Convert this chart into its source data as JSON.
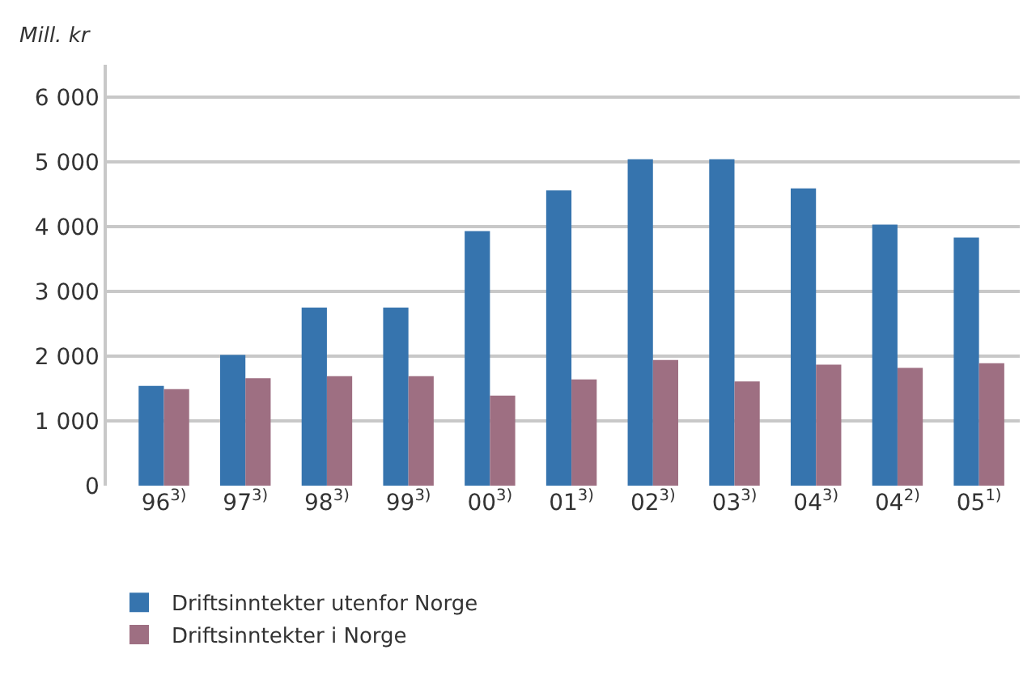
{
  "chart_data": {
    "type": "bar",
    "ylabel": "Mill. kr",
    "categories": [
      "96$^{3)}$",
      "97$^{3)}$",
      "98$^{3)}$",
      "99$^{3)}$",
      "00$^{3)}$",
      "01$^{3)}$",
      "02$^{3)}$",
      "03$^{3)}$",
      "04$^{3)}$",
      "04$^{2)}$",
      "05$^{1)}$"
    ],
    "series": [
      {
        "name": "Driftsinntekter utenfor Norge",
        "color": "#3674ae",
        "values": [
          1540,
          2020,
          2750,
          2750,
          3930,
          4560,
          5040,
          5040,
          4590,
          4030,
          3830
        ]
      },
      {
        "name": "Driftsinntekter i Norge",
        "color": "#9e6f82",
        "values": [
          1490,
          1660,
          1690,
          1690,
          1390,
          1640,
          1940,
          1610,
          1870,
          1820,
          1890
        ]
      }
    ],
    "ylim": [
      0,
      6500
    ],
    "yticks": [
      0,
      {
        "value": 1000,
        "label": "1 000"
      },
      {
        "value": 2000,
        "label": "2 000"
      },
      {
        "value": 3000,
        "label": "3 000"
      },
      {
        "value": 4000,
        "label": "4 000"
      },
      {
        "value": 5000,
        "label": "5 000"
      },
      {
        "value": 6000,
        "label": "6 000"
      }
    ],
    "grid": "y",
    "legend": "bottom left"
  }
}
